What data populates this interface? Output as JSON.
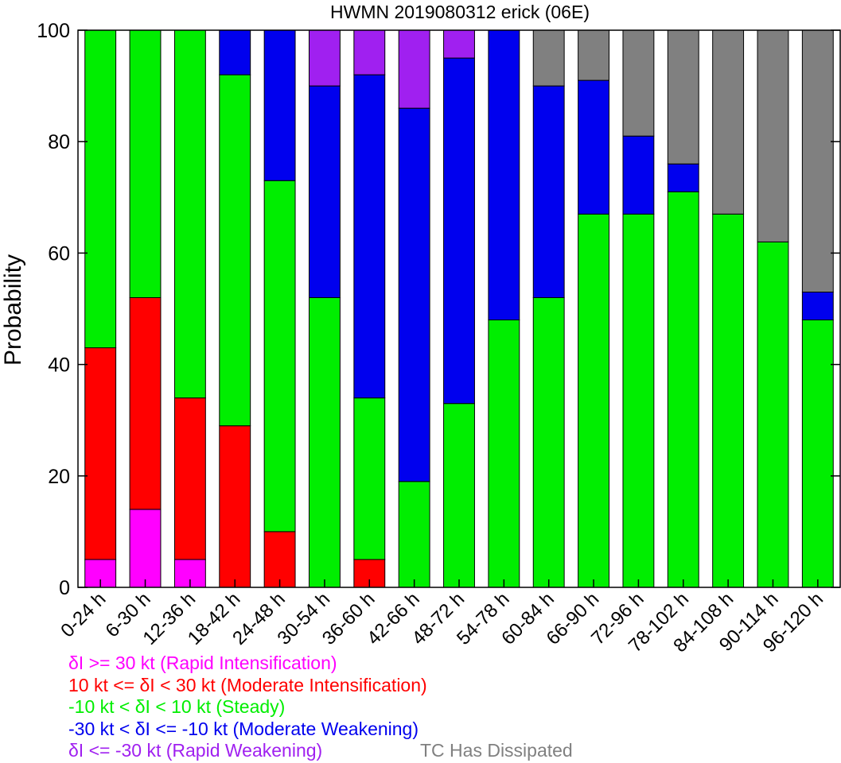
{
  "chart_data": {
    "type": "bar",
    "stacked": true,
    "title": "HWMN 2019080312 erick (06E)",
    "ylabel": "Probability",
    "xlabel": "",
    "ylim": [
      0,
      100
    ],
    "yticks": [
      0,
      20,
      40,
      60,
      80,
      100
    ],
    "categories": [
      "0-24 h",
      "6-30 h",
      "12-36 h",
      "18-42 h",
      "24-48 h",
      "30-54 h",
      "36-60 h",
      "42-66 h",
      "48-72 h",
      "54-78 h",
      "60-84 h",
      "66-90 h",
      "72-96 h",
      "78-102 h",
      "84-108 h",
      "90-114 h",
      "96-120 h"
    ],
    "series": [
      {
        "name": "δI >= 30 kt (Rapid Intensification)",
        "color": "#ff00ff",
        "values": [
          5,
          14,
          5,
          0,
          0,
          0,
          0,
          0,
          0,
          0,
          0,
          0,
          0,
          0,
          0,
          0,
          0
        ]
      },
      {
        "name": "10 kt <= δI < 30 kt (Moderate Intensification)",
        "color": "#ff0000",
        "values": [
          38,
          38,
          29,
          29,
          10,
          0,
          5,
          0,
          0,
          0,
          0,
          0,
          0,
          0,
          0,
          0,
          0
        ]
      },
      {
        "name": "-10 kt < δI < 10 kt (Steady)",
        "color": "#00ee00",
        "values": [
          57,
          48,
          66,
          63,
          63,
          52,
          29,
          19,
          33,
          48,
          52,
          67,
          67,
          71,
          67,
          62,
          48
        ]
      },
      {
        "name": "-30 kt < δI <= -10 kt (Moderate Weakening)",
        "color": "#0000ee",
        "values": [
          0,
          0,
          0,
          8,
          27,
          38,
          58,
          67,
          62,
          52,
          38,
          24,
          14,
          5,
          0,
          0,
          5
        ]
      },
      {
        "name": "δI <= -30 kt (Rapid Weakening)",
        "color": "#a020f0",
        "values": [
          0,
          0,
          0,
          0,
          0,
          10,
          8,
          14,
          5,
          0,
          0,
          0,
          0,
          0,
          0,
          0,
          0
        ]
      },
      {
        "name": "TC Has Dissipated",
        "color": "#808080",
        "values": [
          0,
          0,
          0,
          0,
          0,
          0,
          0,
          0,
          0,
          0,
          10,
          9,
          19,
          24,
          33,
          38,
          47
        ]
      }
    ],
    "grid": false,
    "legend": "bottom-left"
  }
}
